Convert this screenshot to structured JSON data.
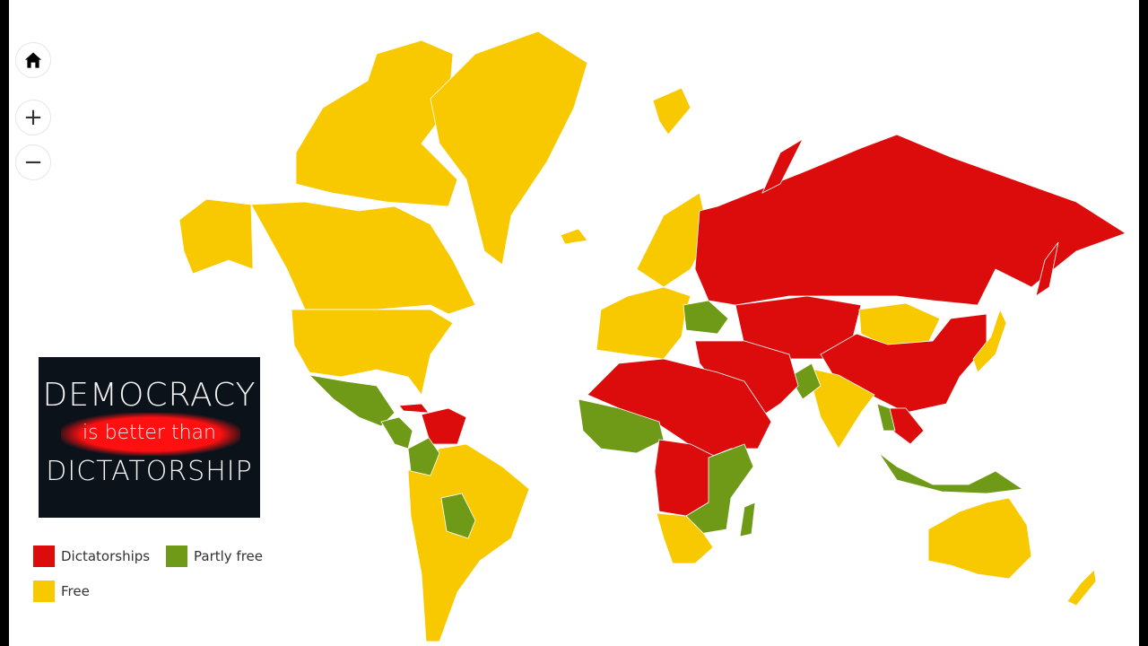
{
  "controls": {
    "home": "home-icon",
    "zoom_in": "+",
    "zoom_out": "−"
  },
  "promo": {
    "line1": "DEMOCRACY",
    "line2": "is better than",
    "line3": "DICTATORSHIP"
  },
  "legend": [
    {
      "label": "Dictatorships",
      "color": "#dd0c0c"
    },
    {
      "label": "Partly free",
      "color": "#6f9a17"
    },
    {
      "label": "Free",
      "color": "#f9c900"
    }
  ],
  "colors": {
    "free": "#f9c900",
    "dictatorship": "#dd0c0c",
    "partly_free": "#6f9a17"
  }
}
